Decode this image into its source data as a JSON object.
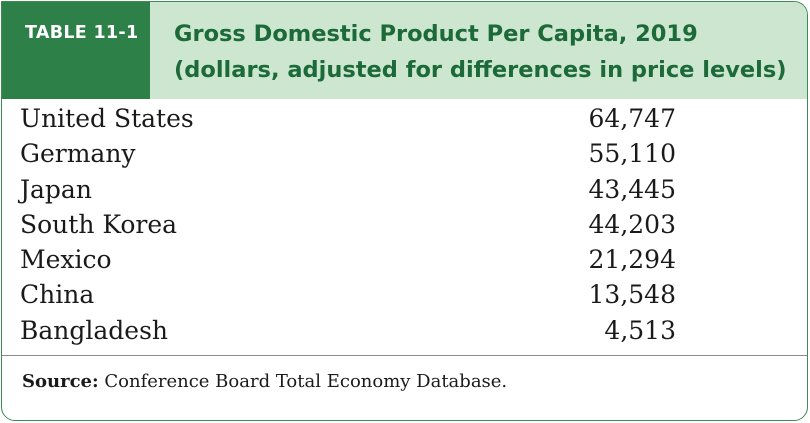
{
  "table": {
    "tag": "TABLE 11-1",
    "title_line1": "Gross Domestic Product Per Capita, 2019",
    "title_line2": "(dollars, adjusted for differences in price levels)",
    "rows": [
      {
        "country": "United States",
        "value": "64,747"
      },
      {
        "country": "Germany",
        "value": "55,110"
      },
      {
        "country": "Japan",
        "value": "43,445"
      },
      {
        "country": "South Korea",
        "value": "44,203"
      },
      {
        "country": "Mexico",
        "value": "21,294"
      },
      {
        "country": "China",
        "value": "13,548"
      },
      {
        "country": "Bangladesh",
        "value": "4,513"
      }
    ],
    "source_label": "Source:",
    "source_text": " Conference Board Total Economy Database."
  },
  "colors": {
    "tag_background": "#2c8048",
    "header_background": "#cde6cf",
    "title_text": "#1c6a3a",
    "border": "#3f8a55"
  }
}
